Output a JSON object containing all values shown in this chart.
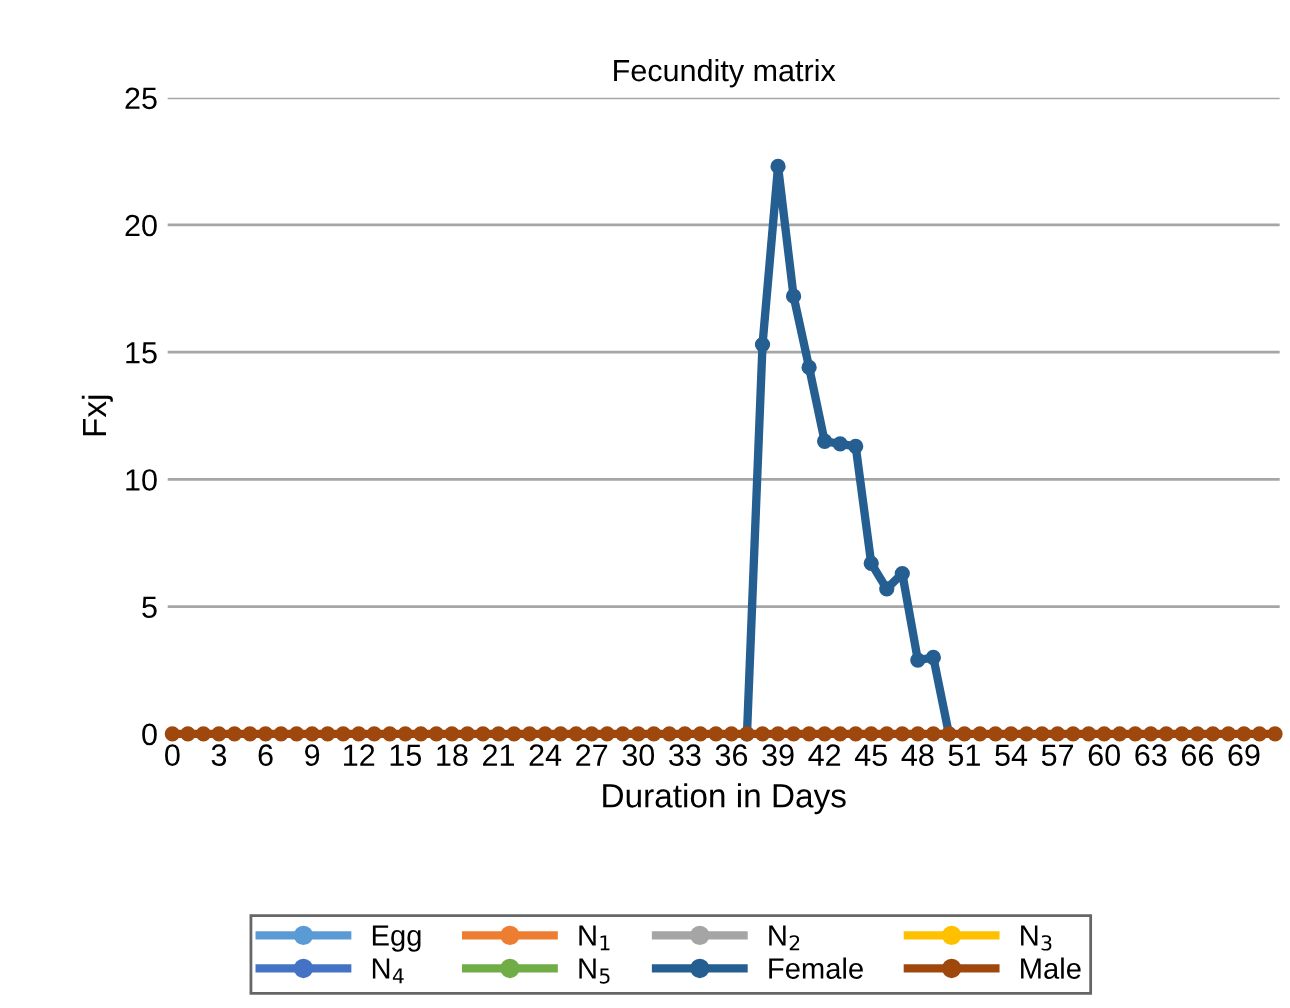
{
  "chart_data": {
    "type": "line",
    "title": "Fecundity matrix",
    "xlabel": "Duration in Days",
    "ylabel": "Fxj",
    "categories": [
      "0",
      null,
      null,
      "3",
      null,
      null,
      "6",
      null,
      null,
      "9",
      null,
      null,
      "12",
      null,
      null,
      "15",
      null,
      null,
      "18",
      null,
      null,
      "21",
      null,
      null,
      "24",
      null,
      null,
      "27",
      null,
      null,
      "30",
      null,
      null,
      "33",
      null,
      null,
      "36",
      null,
      null,
      "39",
      null,
      null,
      "42",
      null,
      null,
      "45",
      null,
      null,
      "48",
      null,
      null,
      "51",
      null,
      null,
      "54",
      null,
      null,
      "57",
      null,
      null,
      "60",
      null,
      null,
      "63",
      null,
      null,
      "66",
      null,
      null,
      "69",
      null,
      null
    ],
    "series": [
      {
        "name": "Egg",
        "color": "#5b9bd5",
        "values": [
          null,
          null,
          null,
          null,
          null,
          null,
          null,
          null,
          null,
          null,
          null,
          null,
          null,
          null,
          null,
          null,
          null,
          null,
          null,
          null,
          null,
          null,
          null,
          null,
          null,
          null,
          null,
          null,
          null,
          null,
          null,
          null,
          null,
          null,
          null,
          null,
          null,
          null,
          null,
          null,
          null,
          null,
          null,
          null,
          null,
          null,
          null,
          null,
          null,
          null,
          null,
          null,
          null,
          null,
          null,
          null,
          null,
          null,
          null,
          null,
          null,
          null,
          null,
          null,
          null,
          null,
          null,
          null,
          null,
          null,
          null,
          null
        ]
      },
      {
        "name": "N$_{1}$",
        "color": "#ed7d31",
        "values": [
          null,
          null,
          null,
          null,
          null,
          null,
          null,
          null,
          null,
          null,
          null,
          null,
          null,
          null,
          null,
          null,
          null,
          null,
          null,
          null,
          null,
          null,
          null,
          null,
          null,
          null,
          null,
          null,
          null,
          null,
          null,
          null,
          null,
          null,
          null,
          null,
          null,
          null,
          null,
          null,
          null,
          null,
          null,
          null,
          null,
          null,
          null,
          null,
          null,
          null,
          null,
          null,
          null,
          null,
          null,
          null,
          null,
          null,
          null,
          null,
          null,
          null,
          null,
          null,
          null,
          null,
          null,
          null,
          null,
          null,
          null,
          null
        ]
      },
      {
        "name": "N$_{2}$",
        "color": "#a5a5a5",
        "values": [
          null,
          null,
          null,
          null,
          null,
          null,
          null,
          null,
          null,
          null,
          null,
          null,
          null,
          null,
          null,
          null,
          null,
          null,
          null,
          null,
          null,
          null,
          null,
          null,
          null,
          null,
          null,
          null,
          null,
          null,
          null,
          null,
          null,
          null,
          null,
          null,
          null,
          null,
          null,
          null,
          null,
          null,
          null,
          null,
          null,
          null,
          null,
          null,
          null,
          null,
          null,
          null,
          null,
          null,
          null,
          null,
          null,
          null,
          null,
          null,
          null,
          null,
          null,
          null,
          null,
          null,
          null,
          null,
          null,
          null,
          null,
          null
        ]
      },
      {
        "name": "N$_{3}$",
        "color": "#ffc000",
        "values": [
          null,
          null,
          null,
          null,
          null,
          null,
          null,
          null,
          null,
          null,
          null,
          null,
          null,
          null,
          null,
          null,
          null,
          null,
          null,
          null,
          null,
          null,
          null,
          null,
          null,
          null,
          null,
          null,
          null,
          null,
          null,
          null,
          null,
          null,
          null,
          null,
          null,
          null,
          null,
          null,
          null,
          null,
          null,
          null,
          null,
          null,
          null,
          null,
          null,
          null,
          null,
          null,
          null,
          null,
          null,
          null,
          null,
          null,
          null,
          null,
          null,
          null,
          null,
          null,
          null,
          null,
          null,
          null,
          null,
          null,
          null,
          null
        ]
      },
      {
        "name": "N$_{4}$",
        "color": "#4472c4",
        "values": [
          null,
          null,
          null,
          null,
          null,
          null,
          null,
          null,
          null,
          null,
          null,
          null,
          null,
          null,
          null,
          null,
          null,
          null,
          null,
          null,
          null,
          null,
          null,
          null,
          null,
          null,
          null,
          null,
          null,
          null,
          null,
          null,
          null,
          null,
          null,
          null,
          null,
          null,
          null,
          null,
          null,
          null,
          null,
          null,
          null,
          null,
          null,
          null,
          null,
          null,
          null,
          null,
          null,
          null,
          null,
          null,
          null,
          null,
          null,
          null,
          null,
          null,
          null,
          null,
          null,
          null,
          null,
          null,
          null,
          null,
          null,
          null
        ]
      },
      {
        "name": "N$_{5}$",
        "color": "#70ad47",
        "values": [
          null,
          null,
          null,
          null,
          null,
          null,
          null,
          null,
          null,
          null,
          null,
          null,
          null,
          null,
          null,
          null,
          null,
          null,
          null,
          null,
          null,
          null,
          null,
          null,
          null,
          null,
          null,
          null,
          null,
          null,
          null,
          null,
          null,
          null,
          null,
          null,
          null,
          null,
          null,
          null,
          null,
          null,
          null,
          null,
          null,
          null,
          null,
          null,
          null,
          null,
          null,
          null,
          null,
          null,
          null,
          null,
          null,
          null,
          null,
          null,
          null,
          null,
          null,
          null,
          null,
          null,
          null,
          null,
          null,
          null,
          null,
          null
        ]
      },
      {
        "name": "Female",
        "color": "#255e91",
        "values": [
          null,
          null,
          null,
          null,
          null,
          null,
          null,
          null,
          null,
          null,
          null,
          null,
          null,
          null,
          null,
          null,
          null,
          null,
          null,
          null,
          null,
          null,
          null,
          null,
          null,
          null,
          null,
          null,
          null,
          null,
          null,
          null,
          null,
          null,
          null,
          null,
          null,
          0,
          15.3,
          22.3,
          17.2,
          14.4,
          11.5,
          11.4,
          11.3,
          6.7,
          5.7,
          6.3,
          2.9,
          3.0,
          0,
          null,
          null,
          null,
          null,
          null,
          null,
          null,
          null,
          null,
          null,
          null,
          null,
          null,
          null,
          null,
          null,
          null,
          null,
          null,
          null,
          null
        ]
      },
      {
        "name": "Male",
        "color": "#9e480e",
        "values": [
          0,
          0,
          0,
          0,
          0,
          0,
          0,
          0,
          0,
          0,
          0,
          0,
          0,
          0,
          0,
          0,
          0,
          0,
          0,
          0,
          0,
          0,
          0,
          0,
          0,
          0,
          0,
          0,
          0,
          0,
          0,
          0,
          0,
          0,
          0,
          0,
          0,
          0,
          0,
          0,
          0,
          0,
          0,
          0,
          0,
          0,
          0,
          0,
          0,
          0,
          0,
          0,
          0,
          0,
          0,
          0,
          0,
          0,
          0,
          0,
          0,
          0,
          0,
          0,
          0,
          0,
          0,
          0,
          0,
          0,
          0,
          0
        ]
      }
    ],
    "ylim": [
      0,
      25
    ],
    "yticks": [
      0,
      5,
      10,
      15,
      20,
      25
    ],
    "grid": "y",
    "legend": "bottom",
    "marker": "circle",
    "line_style": "solid"
  }
}
